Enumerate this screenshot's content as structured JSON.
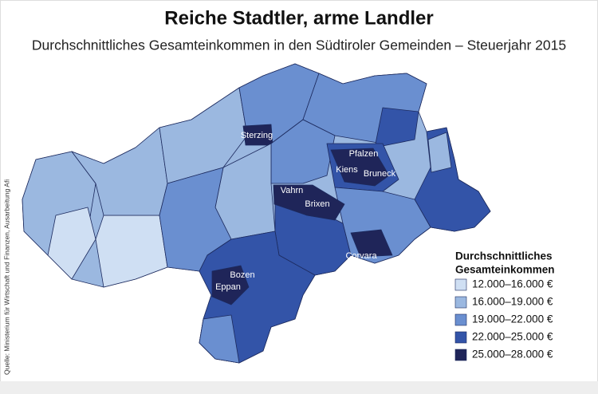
{
  "header": {
    "title": "Reiche Stadtler, arme Landler",
    "subtitle": "Durchschnittliches Gesamteinkommen in den Südtiroler Gemeinden – Steuerjahr 2015"
  },
  "source": "Quelle: Ministerium für Wirtschaft und Finanzen, Ausarbeitung Afi",
  "legend": {
    "title": [
      "Durchschnittliches",
      "Gesamteinkommen"
    ],
    "items": [
      {
        "label": "12.000–16.000 €",
        "color": "#cfdff3"
      },
      {
        "label": "16.000–19.000 €",
        "color": "#9bb8e0"
      },
      {
        "label": "19.000–22.000 €",
        "color": "#6a8fd0"
      },
      {
        "label": "22.000–25.000 €",
        "color": "#3354a8"
      },
      {
        "label": "25.000–28.000 €",
        "color": "#1f2559"
      }
    ]
  },
  "places": [
    {
      "label": "Sterzing"
    },
    {
      "label": "Pfalzen"
    },
    {
      "label": "Kiens"
    },
    {
      "label": "Bruneck"
    },
    {
      "label": "Vahrn"
    },
    {
      "label": "Brixen"
    },
    {
      "label": "Corvara"
    },
    {
      "label": "Bozen"
    },
    {
      "label": "Eppan"
    }
  ]
}
